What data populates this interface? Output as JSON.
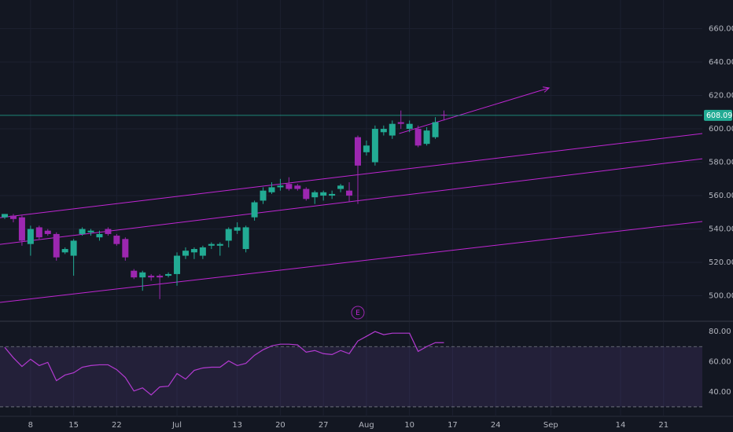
{
  "chart_data": [
    {
      "type": "candlestick",
      "open": [
        547,
        548,
        547,
        531,
        541,
        539,
        537,
        526,
        524,
        537,
        538,
        535,
        540,
        536,
        534,
        515,
        511,
        512,
        512,
        512,
        513,
        524,
        526,
        524,
        530,
        530,
        533,
        539,
        528,
        547,
        557,
        562,
        565,
        567,
        566,
        564,
        559,
        560,
        560,
        564,
        563,
        595,
        586,
        580,
        598,
        596,
        604,
        600,
        600,
        591,
        595,
        608.5
      ],
      "high": [
        549,
        549,
        548,
        542,
        542,
        540,
        538,
        529,
        534,
        541,
        540,
        539,
        541,
        537,
        535,
        516,
        515,
        513,
        513,
        514,
        526,
        529,
        529,
        530,
        532,
        532,
        541,
        544,
        542,
        557,
        565,
        568,
        570,
        571,
        567,
        565,
        563,
        563,
        563,
        567,
        568,
        596,
        593,
        602,
        602,
        605,
        611,
        605,
        602,
        601,
        607,
        611
      ],
      "low": [
        546,
        544,
        530,
        524,
        534,
        536,
        521,
        525,
        512,
        536,
        536,
        533,
        536,
        530,
        521,
        510,
        503,
        509,
        498,
        511,
        506,
        522,
        522,
        522,
        528,
        524,
        529,
        537,
        526,
        545,
        555,
        561,
        563,
        563,
        563,
        557,
        555,
        557,
        558,
        562,
        556,
        555,
        584,
        578,
        596,
        594,
        600,
        598,
        589,
        590,
        594,
        605
      ],
      "close": [
        549,
        546,
        533,
        540,
        535,
        537,
        523,
        528,
        533,
        540,
        539,
        537,
        537,
        531,
        523,
        511,
        514,
        511,
        511,
        513,
        524,
        527,
        528,
        529,
        531,
        531,
        540,
        541,
        541,
        556,
        563,
        565,
        566,
        564,
        564,
        558,
        562,
        562,
        561,
        566,
        560,
        578,
        590,
        600,
        600,
        603,
        603,
        603,
        590,
        599,
        604,
        608.09
      ],
      "up_color": "#22ab94",
      "down_color": "#9c27b0",
      "xlim": [
        -0.55,
        81
      ],
      "ylim": [
        485.2,
        677.2
      ],
      "yticks": [
        {
          "value": 500,
          "label": "500.00"
        },
        {
          "value": 520,
          "label": "520.00"
        },
        {
          "value": 540,
          "label": "540.00"
        },
        {
          "value": 560,
          "label": "560.00"
        },
        {
          "value": 580,
          "label": "580.00"
        },
        {
          "value": 600,
          "label": "600.00"
        },
        {
          "value": 620,
          "label": "620.00"
        },
        {
          "value": 640,
          "label": "640.00"
        },
        {
          "value": 660,
          "label": "660.00"
        }
      ],
      "last_price": 608.09,
      "last_price_color": "#22ab94",
      "drawing_color": "#c026d3",
      "drawings": [
        {
          "x": [
            -0.55,
            81
          ],
          "y": [
            546.8,
            597.2
          ]
        },
        {
          "x": [
            -0.55,
            81
          ],
          "y": [
            530.8,
            582.1
          ]
        },
        {
          "x": [
            -0.55,
            81
          ],
          "y": [
            496,
            544.5
          ]
        },
        {
          "x": [
            45.8,
            63.2
          ],
          "y": [
            597.2,
            624.5
          ],
          "arrow": true
        }
      ],
      "annotations": [
        {
          "text": "E",
          "x": 41,
          "y": 489.9
        }
      ]
    },
    {
      "type": "line",
      "values": [
        69.5,
        62.6,
        56.8,
        61.6,
        57.4,
        59.5,
        47.4,
        51.1,
        52.6,
        56.3,
        57.4,
        57.9,
        57.9,
        54.7,
        49.5,
        40.5,
        42.6,
        37.9,
        43.2,
        43.7,
        52.1,
        48.4,
        54.2,
        55.8,
        56.3,
        56.3,
        60.5,
        57.4,
        58.9,
        64.2,
        67.9,
        70.5,
        71.6,
        71.6,
        71.1,
        66.3,
        67.4,
        65.3,
        64.7,
        67.4,
        65.3,
        73.7,
        76.8,
        80.0,
        77.9,
        78.9,
        78.9,
        78.9,
        66.8,
        70.0,
        72.6,
        72.6
      ],
      "color": "#b33ad1",
      "xlim": [
        -0.55,
        81
      ],
      "ylim": [
        23.7,
        86.3
      ],
      "band": [
        30,
        70
      ],
      "band_color": "#7e57c2",
      "yticks": [
        {
          "value": 40,
          "label": "40.00"
        },
        {
          "value": 60,
          "label": "60.00"
        },
        {
          "value": 80,
          "label": "80.00"
        }
      ],
      "xticks": [
        {
          "value": 3,
          "label": "8"
        },
        {
          "value": 8,
          "label": "15"
        },
        {
          "value": 13,
          "label": "22"
        },
        {
          "value": 20,
          "label": "Jul"
        },
        {
          "value": 27,
          "label": "13"
        },
        {
          "value": 32,
          "label": "20"
        },
        {
          "value": 37,
          "label": "27"
        },
        {
          "value": 42,
          "label": "Aug"
        },
        {
          "value": 47,
          "label": "10"
        },
        {
          "value": 52,
          "label": "17"
        },
        {
          "value": 57,
          "label": "24"
        },
        {
          "value": 63.4,
          "label": "Sep"
        },
        {
          "value": 71.5,
          "label": "14"
        },
        {
          "value": 76.5,
          "label": "21"
        }
      ]
    }
  ]
}
